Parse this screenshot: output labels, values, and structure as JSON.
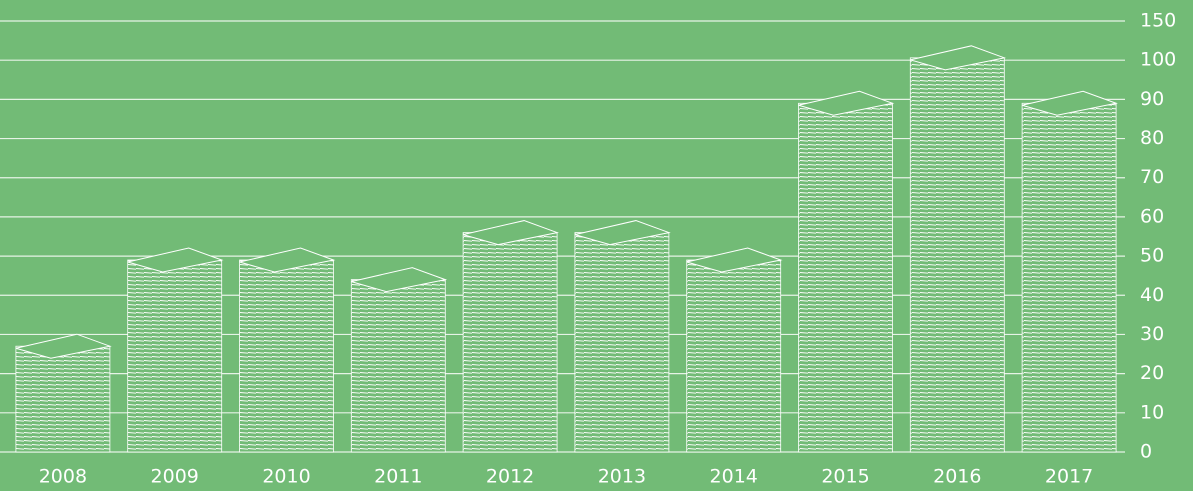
{
  "chart_data": {
    "type": "bar",
    "categories": [
      "2008",
      "2009",
      "2010",
      "2011",
      "2012",
      "2013",
      "2014",
      "2015",
      "2016",
      "2017"
    ],
    "values": [
      27,
      49,
      49,
      44,
      56,
      56,
      49,
      89,
      103,
      89
    ],
    "color": "#ffffff",
    "ylim": [
      0,
      150
    ],
    "yticks": [
      0,
      10,
      20,
      30,
      40,
      50,
      60,
      70,
      80,
      90,
      100,
      150
    ],
    "grid": true
  }
}
